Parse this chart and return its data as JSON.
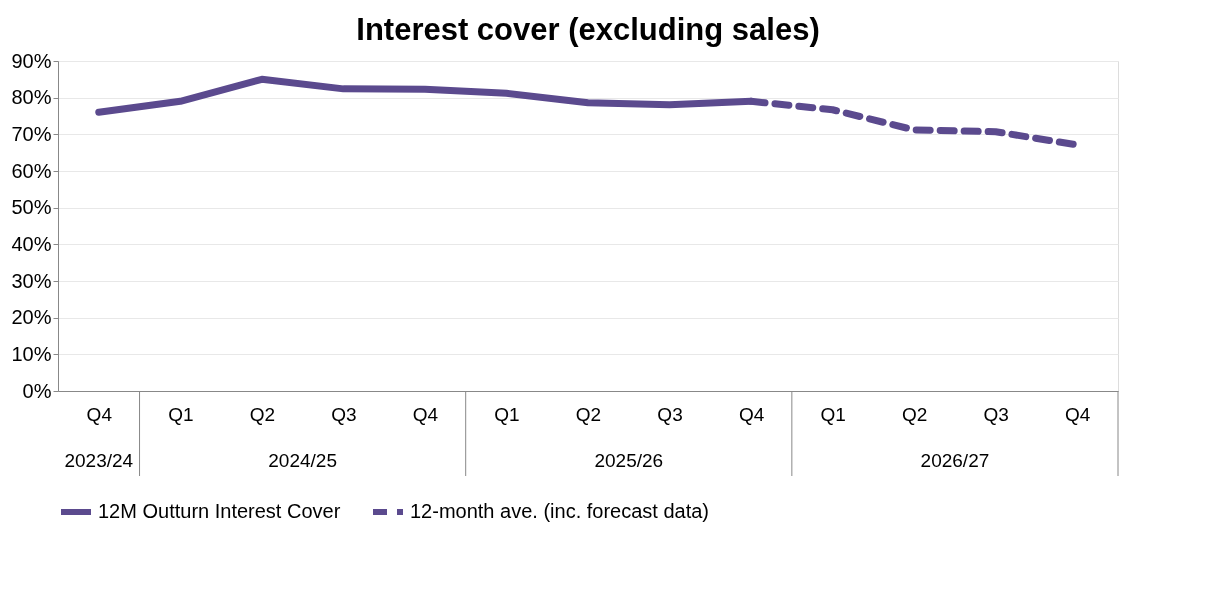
{
  "chart_data": {
    "type": "line",
    "title": "Interest cover (excluding sales)",
    "categories": [
      "Q4",
      "Q1",
      "Q2",
      "Q3",
      "Q4",
      "Q1",
      "Q2",
      "Q3",
      "Q4",
      "Q1",
      "Q2",
      "Q3",
      "Q4"
    ],
    "annotations": [
      "2023/24",
      "2024/25",
      "2025/26",
      "2026/27"
    ],
    "series": [
      {
        "name": "12M Outturn Interest Cover",
        "color": "#5b4a8e",
        "line_style": "solid",
        "values": [
          76,
          79,
          85,
          82.4,
          82.3,
          81.2,
          78.6,
          78.1,
          79,
          null,
          null,
          null,
          null
        ]
      },
      {
        "name": "12-month ave. (inc. forecast data)",
        "color": "#5b4a8e",
        "line_style": "dashed",
        "values": [
          null,
          null,
          null,
          null,
          null,
          null,
          null,
          null,
          79,
          76.7,
          71.2,
          70.7,
          67.1
        ]
      }
    ],
    "ylim": [
      0,
      90
    ],
    "yticks": [
      {
        "value": 0,
        "label": "0%"
      },
      {
        "value": 10,
        "label": "10%"
      },
      {
        "value": 20,
        "label": "20%"
      },
      {
        "value": 30,
        "label": "30%"
      },
      {
        "value": 40,
        "label": "40%"
      },
      {
        "value": 50,
        "label": "50%"
      },
      {
        "value": 60,
        "label": "60%"
      },
      {
        "value": 70,
        "label": "70%"
      },
      {
        "value": 80,
        "label": "80%"
      },
      {
        "value": 90,
        "label": "90%"
      }
    ],
    "grid": "y",
    "legend": "bottom",
    "marker": "none"
  }
}
